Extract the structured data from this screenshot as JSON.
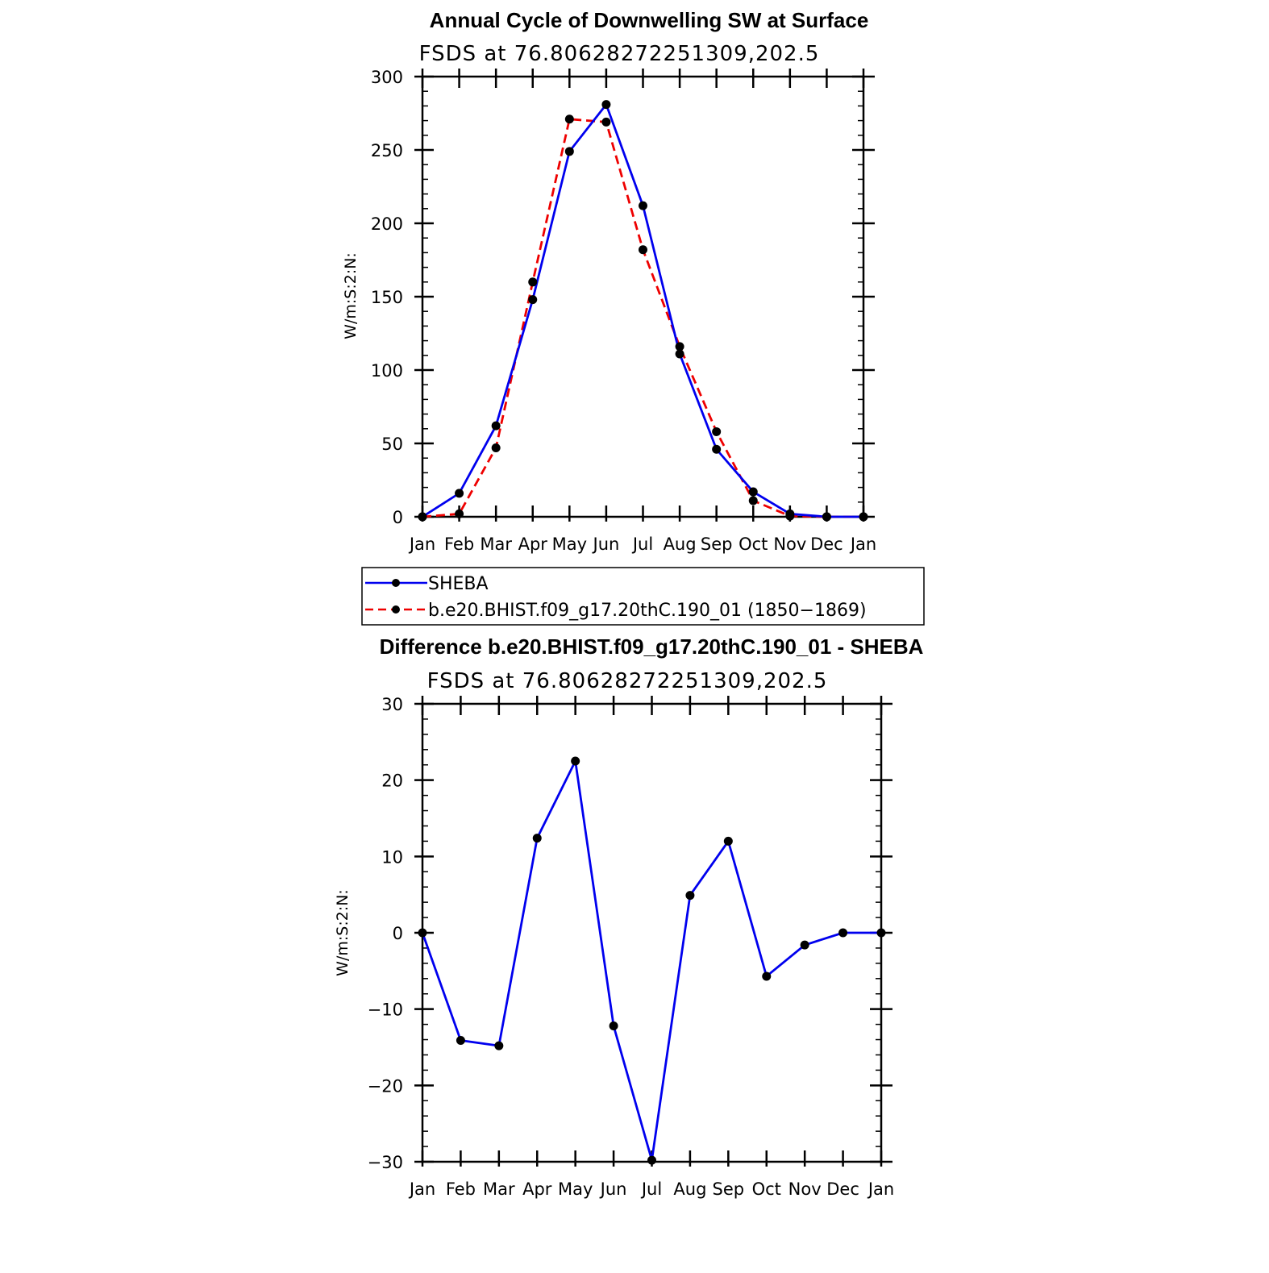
{
  "chart_data": [
    {
      "type": "line",
      "title": "Annual Cycle of Downwelling SW at Surface",
      "subtitle": "FSDS at 76.80628272251309,202.5",
      "xlabel": "",
      "ylabel": "W/m:S:2:N:",
      "categories": [
        "Jan",
        "Feb",
        "Mar",
        "Apr",
        "May",
        "Jun",
        "Jul",
        "Aug",
        "Sep",
        "Oct",
        "Nov",
        "Dec",
        "Jan"
      ],
      "ylim": [
        0,
        300
      ],
      "yticks": [
        "0",
        "50",
        "100",
        "150",
        "200",
        "250",
        "300"
      ],
      "series": [
        {
          "name": "SHEBA",
          "color": "#0000ee",
          "style": "solid",
          "values": [
            0,
            16,
            62,
            148,
            249,
            281,
            212,
            111,
            46,
            17,
            2,
            0,
            0
          ]
        },
        {
          "name": "b.e20.BHIST.f09_g17.20thC.190_01 (1850−1869)",
          "color": "#ee0000",
          "style": "dashed",
          "values": [
            0,
            2,
            47,
            160,
            271,
            269,
            182,
            116,
            58,
            11,
            0.5,
            0,
            0
          ]
        }
      ],
      "legend": "below"
    },
    {
      "type": "line",
      "title": "Difference b.e20.BHIST.f09_g17.20thC.190_01 - SHEBA",
      "subtitle": "FSDS at 76.80628272251309,202.5",
      "xlabel": "",
      "ylabel": "W/m:S:2:N:",
      "categories": [
        "Jan",
        "Feb",
        "Mar",
        "Apr",
        "May",
        "Jun",
        "Jul",
        "Aug",
        "Sep",
        "Oct",
        "Nov",
        "Dec",
        "Jan"
      ],
      "ylim": [
        -30,
        30
      ],
      "yticks": [
        "−30",
        "−20",
        "−10",
        "0",
        "10",
        "20",
        "30"
      ],
      "series": [
        {
          "name": "",
          "color": "#0000ee",
          "style": "solid",
          "values": [
            0,
            -14.1,
            -14.8,
            12.4,
            22.5,
            -12.2,
            -29.8,
            4.9,
            12.0,
            -5.7,
            -1.6,
            0,
            0
          ]
        }
      ]
    }
  ]
}
